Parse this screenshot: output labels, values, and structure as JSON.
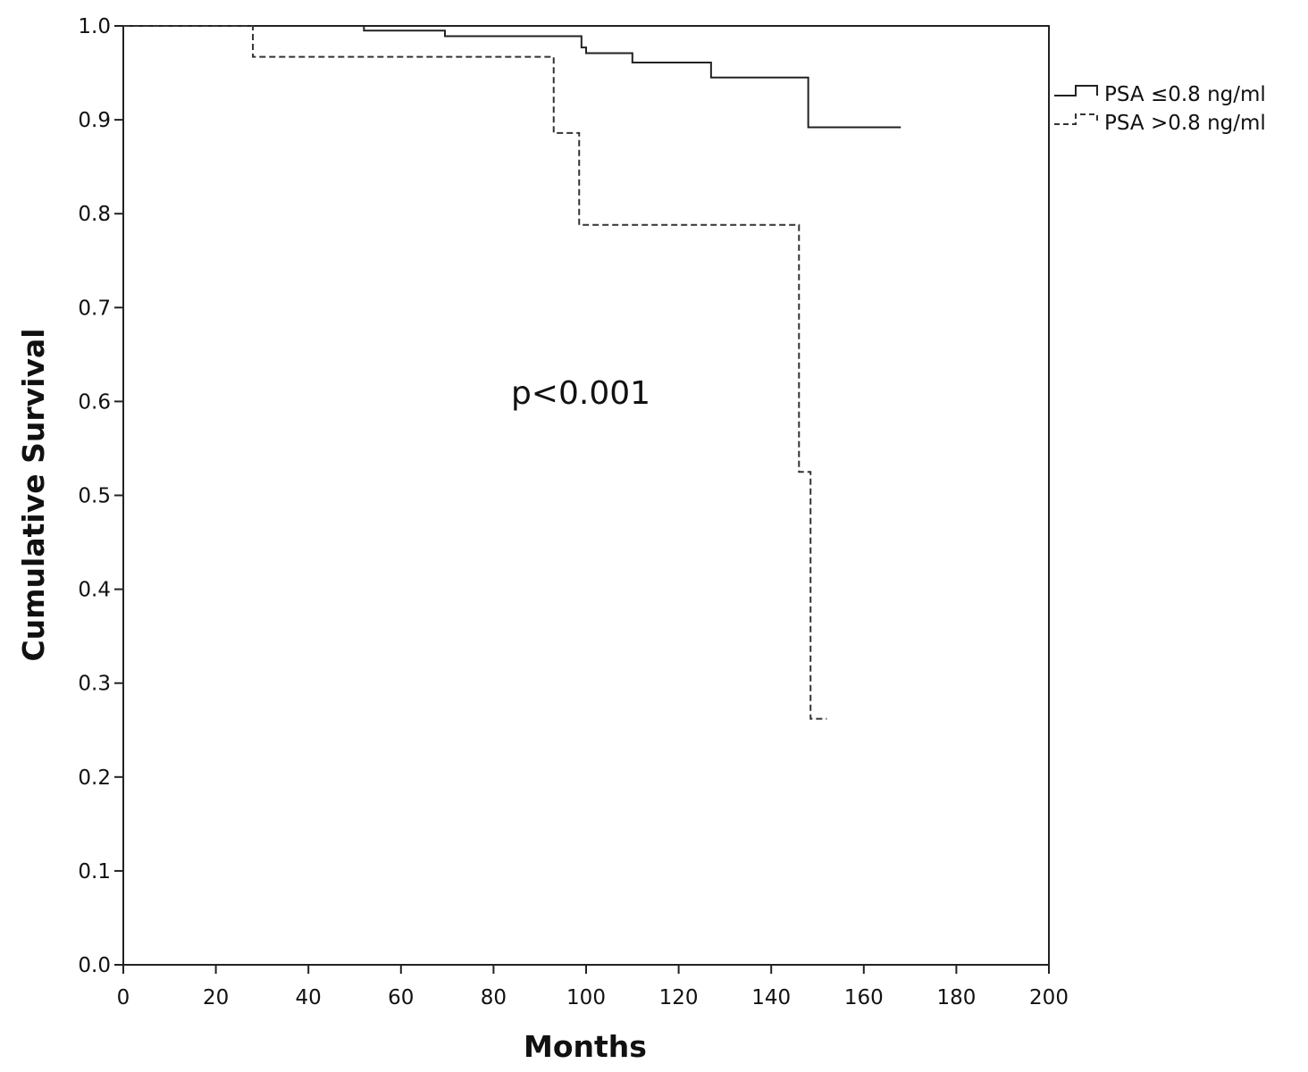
{
  "chart_data": {
    "type": "line",
    "subtype": "kaplan-meier-step",
    "xlabel": "Months",
    "ylabel": "Cumulative Survival",
    "xlim": [
      0,
      200
    ],
    "ylim": [
      0.0,
      1.0
    ],
    "x_ticks": [
      "0",
      "20",
      "40",
      "60",
      "80",
      "100",
      "120",
      "140",
      "160",
      "180",
      "200"
    ],
    "y_ticks": [
      "0.0",
      "0.1",
      "0.2",
      "0.3",
      "0.4",
      "0.5",
      "0.6",
      "0.7",
      "0.8",
      "0.9",
      "1.0"
    ],
    "grid": false,
    "legend_position": "right",
    "annotation": "p<0.001",
    "series": [
      {
        "name": "PSA ≤0.8 ng/ml",
        "line_style": "solid",
        "color": "#222222",
        "x": [
          0,
          52,
          69.5,
          99,
          100,
          110,
          127,
          148,
          168
        ],
        "y": [
          1.0,
          0.995,
          0.989,
          0.977,
          0.971,
          0.961,
          0.945,
          0.892,
          0.892
        ]
      },
      {
        "name": "PSA >0.8 ng/ml",
        "line_style": "dashed",
        "color": "#333333",
        "x": [
          0,
          28,
          93,
          98.5,
          146,
          148.5,
          152
        ],
        "y": [
          1.0,
          0.967,
          0.886,
          0.788,
          0.525,
          0.262,
          0.262
        ]
      }
    ]
  }
}
